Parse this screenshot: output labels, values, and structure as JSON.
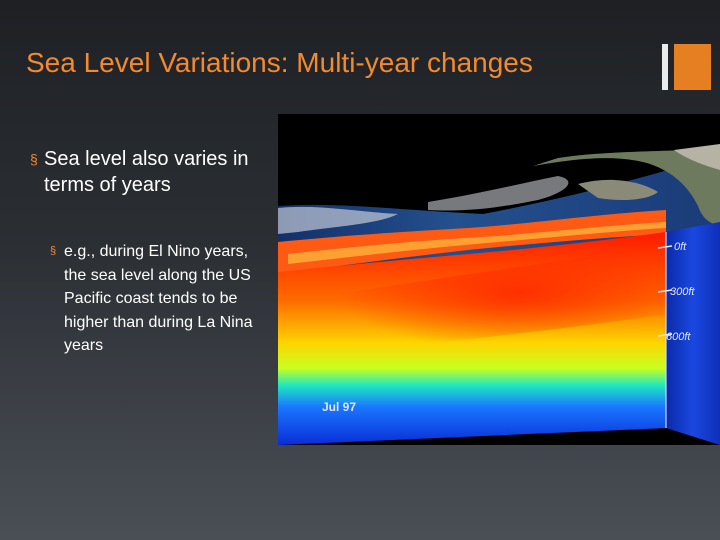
{
  "slide": {
    "title": "Sea Level Variations: Multi-year changes",
    "bullets": [
      {
        "marker": "§",
        "text": "Sea level also varies in terms of years"
      },
      {
        "marker": "§",
        "text": "e.g., during El Nino years, the sea level along the US Pacific coast tends to be higher than during La Nina years"
      }
    ]
  },
  "figure": {
    "depth_labels": [
      "0ft",
      "300ft",
      "600ft"
    ],
    "date_label": "Jul  97"
  },
  "colors": {
    "title": "#f28a2e",
    "accent": "#e67e22",
    "text": "#ffffff",
    "background": "#2b2f34"
  }
}
